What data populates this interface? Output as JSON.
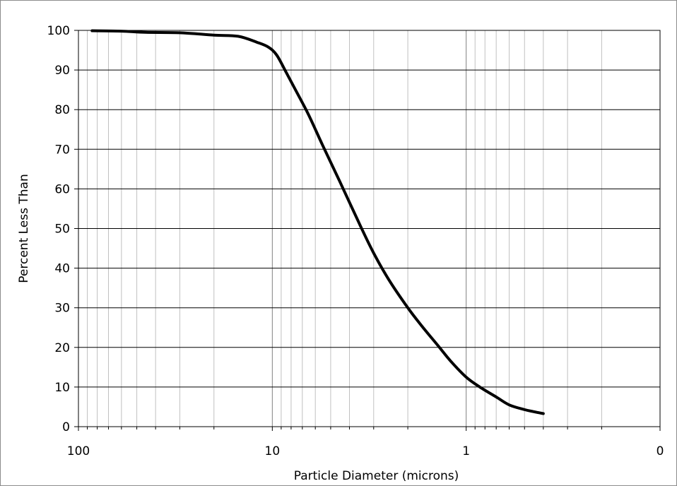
{
  "chart_data": {
    "type": "line",
    "title": "",
    "xlabel": "Particle Diameter (microns)",
    "ylabel": "Percent Less Than",
    "x_scale": "log",
    "x_reversed": true,
    "xlim": [
      100,
      0.1
    ],
    "ylim": [
      0,
      100
    ],
    "x_ticks": [
      {
        "value": 100,
        "label": "100"
      },
      {
        "value": 10,
        "label": "10"
      },
      {
        "value": 1,
        "label": "1"
      },
      {
        "value": 0.1,
        "label": "0"
      }
    ],
    "y_ticks": [
      0,
      10,
      20,
      30,
      40,
      50,
      60,
      70,
      80,
      90,
      100
    ],
    "y_tick_labels": [
      "0",
      "10",
      "20",
      "30",
      "40",
      "50",
      "60",
      "70",
      "80",
      "90",
      "100"
    ],
    "grid": {
      "major_y": true,
      "major_x": true,
      "minor_x": true
    },
    "legend": "none",
    "line_color": "#000000",
    "series": [
      {
        "x": [
          85,
          60,
          45,
          30,
          20,
          15,
          12,
          10.5,
          9.5,
          8.5,
          7.5,
          6.5,
          5.5,
          4.5,
          3.5,
          3.0,
          2.5,
          2.0,
          1.7,
          1.4,
          1.2,
          1.0,
          0.85,
          0.7,
          0.6,
          0.5,
          0.45,
          0.4
        ],
        "y": [
          99.9,
          99.8,
          99.5,
          99.4,
          98.8,
          98.5,
          97.0,
          95.8,
          93.8,
          89.5,
          84.5,
          78.7,
          71.0,
          62.0,
          50.5,
          43.8,
          37.0,
          30.0,
          25.5,
          20.5,
          16.5,
          12.5,
          10.0,
          7.5,
          5.5,
          4.3,
          3.8,
          3.3
        ]
      }
    ]
  }
}
